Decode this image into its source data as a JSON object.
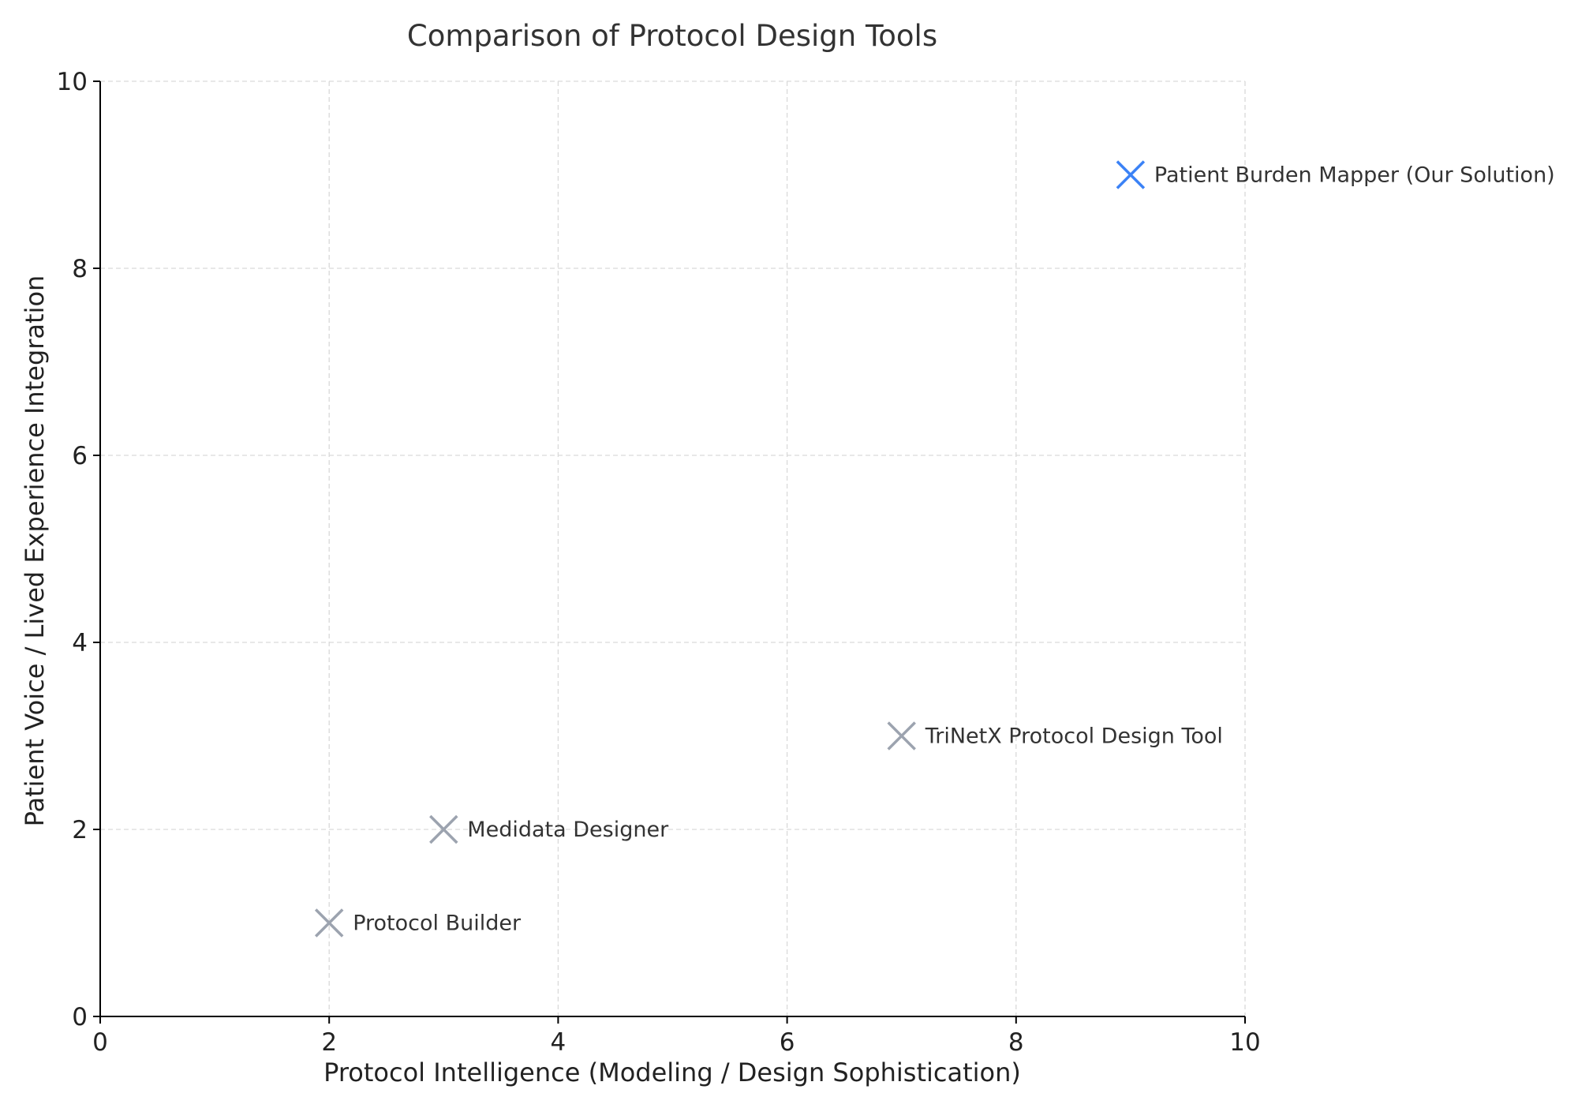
{
  "chart_data": {
    "type": "scatter",
    "title": "Comparison of Protocol Design Tools",
    "xlabel": "Protocol Intelligence (Modeling / Design Sophistication)",
    "ylabel": "Patient Voice / Lived Experience Integration",
    "xlim": [
      0,
      10
    ],
    "ylim": [
      0,
      10
    ],
    "xticks": [
      0,
      2,
      4,
      6,
      8,
      10
    ],
    "yticks": [
      0,
      2,
      4,
      6,
      8,
      10
    ],
    "grid": true,
    "marker": "x",
    "points": [
      {
        "label": "Protocol Builder",
        "x": 2,
        "y": 1,
        "color": "#9ca3af"
      },
      {
        "label": "Medidata Designer",
        "x": 3,
        "y": 2,
        "color": "#9ca3af"
      },
      {
        "label": "TriNetX Protocol Design Tool",
        "x": 7,
        "y": 3,
        "color": "#9ca3af"
      },
      {
        "label": "Patient Burden Mapper (Our Solution)",
        "x": 9,
        "y": 9,
        "color": "#3b82f6"
      }
    ]
  }
}
